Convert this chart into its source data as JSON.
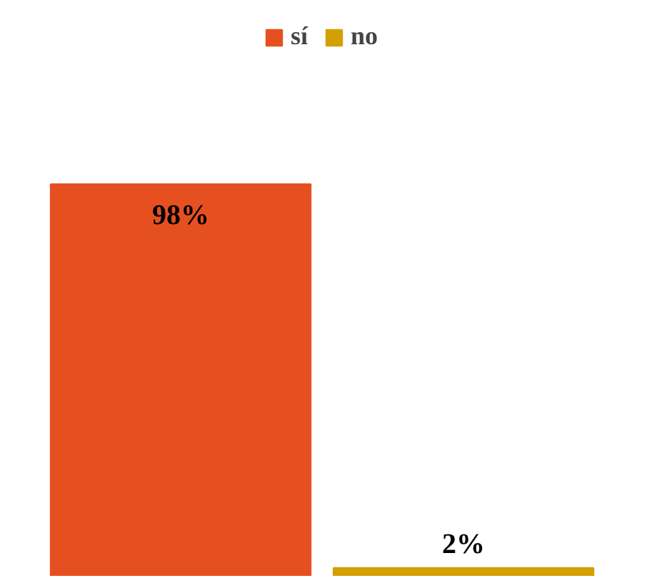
{
  "chart_data": {
    "type": "bar",
    "categories": [
      null
    ],
    "series": [
      {
        "name": "sí",
        "color": "#e65020",
        "values": [
          98
        ],
        "value_labels": [
          "98%"
        ]
      },
      {
        "name": "no",
        "color": "#d4a000",
        "values": [
          2
        ],
        "value_labels": [
          "2%"
        ]
      }
    ],
    "legend": "top"
  }
}
